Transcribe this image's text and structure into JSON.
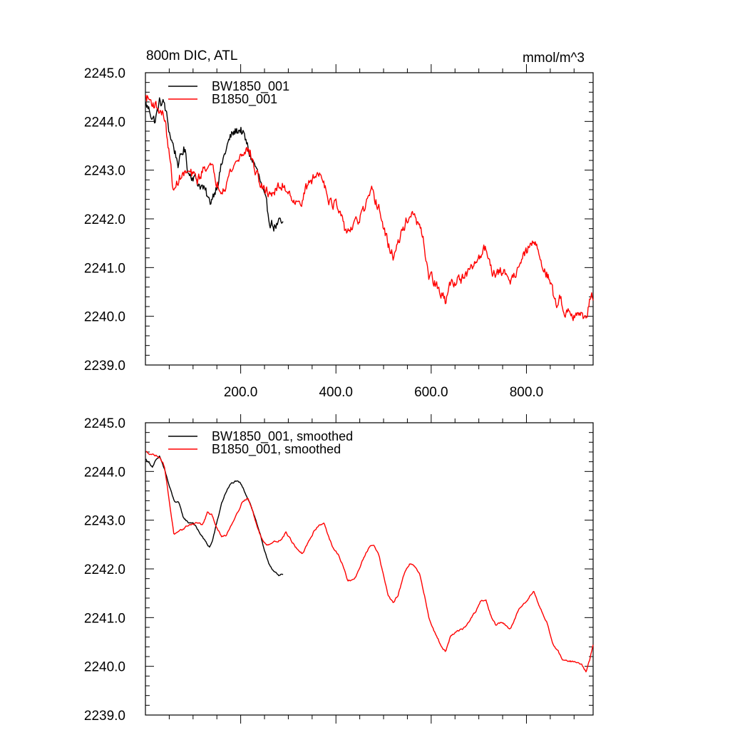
{
  "chart_data": [
    {
      "type": "line",
      "title": "800m DIC, ATL",
      "units": "mmol/m^3",
      "xlim": [
        0,
        940
      ],
      "ylim": [
        2239.0,
        2245.0
      ],
      "xticks": [
        200,
        400,
        600,
        800
      ],
      "xtick_labels": [
        "200.0",
        "400.0",
        "600.0",
        "800.0"
      ],
      "yticks": [
        2239.0,
        2240.0,
        2241.0,
        2242.0,
        2243.0,
        2244.0,
        2245.0
      ],
      "ytick_labels": [
        "2239.0",
        "2240.0",
        "2241.0",
        "2242.0",
        "2243.0",
        "2244.0",
        "2245.0"
      ],
      "legend_position": "top-left",
      "series": [
        {
          "name": "BW1850_001",
          "color": "#000000",
          "noise": 0.12,
          "points": [
            [
              1,
              2244.35
            ],
            [
              10,
              2244.2
            ],
            [
              20,
              2244.0
            ],
            [
              30,
              2244.4
            ],
            [
              40,
              2244.35
            ],
            [
              50,
              2243.8
            ],
            [
              60,
              2243.45
            ],
            [
              70,
              2243.1
            ],
            [
              80,
              2243.45
            ],
            [
              85,
              2243.3
            ],
            [
              90,
              2242.95
            ],
            [
              100,
              2242.9
            ],
            [
              110,
              2242.75
            ],
            [
              120,
              2242.65
            ],
            [
              130,
              2242.45
            ],
            [
              135,
              2242.3
            ],
            [
              140,
              2242.45
            ],
            [
              150,
              2242.7
            ],
            [
              160,
              2243.1
            ],
            [
              170,
              2243.45
            ],
            [
              180,
              2243.7
            ],
            [
              190,
              2243.8
            ],
            [
              200,
              2243.85
            ],
            [
              210,
              2243.6
            ],
            [
              220,
              2243.3
            ],
            [
              230,
              2243.1
            ],
            [
              240,
              2242.8
            ],
            [
              250,
              2242.4
            ],
            [
              260,
              2242.0
            ],
            [
              270,
              2241.85
            ],
            [
              280,
              2241.9
            ],
            [
              290,
              2241.85
            ]
          ]
        },
        {
          "name": "B1850_001",
          "color": "#ff0000",
          "noise": 0.12,
          "points": [
            [
              1,
              2244.5
            ],
            [
              20,
              2244.35
            ],
            [
              40,
              2244.1
            ],
            [
              50,
              2243.3
            ],
            [
              60,
              2242.5
            ],
            [
              70,
              2242.85
            ],
            [
              90,
              2242.95
            ],
            [
              110,
              2242.8
            ],
            [
              130,
              2243.15
            ],
            [
              140,
              2243.0
            ],
            [
              150,
              2242.75
            ],
            [
              160,
              2242.65
            ],
            [
              170,
              2242.75
            ],
            [
              180,
              2243.0
            ],
            [
              200,
              2243.3
            ],
            [
              210,
              2243.45
            ],
            [
              220,
              2243.35
            ],
            [
              230,
              2243.0
            ],
            [
              240,
              2242.75
            ],
            [
              250,
              2242.55
            ],
            [
              270,
              2242.55
            ],
            [
              290,
              2242.7
            ],
            [
              310,
              2242.45
            ],
            [
              320,
              2242.25
            ],
            [
              330,
              2242.45
            ],
            [
              345,
              2242.75
            ],
            [
              360,
              2242.9
            ],
            [
              370,
              2242.95
            ],
            [
              380,
              2242.6
            ],
            [
              390,
              2242.3
            ],
            [
              400,
              2242.3
            ],
            [
              410,
              2242.0
            ],
            [
              420,
              2241.75
            ],
            [
              440,
              2241.85
            ],
            [
              460,
              2242.2
            ],
            [
              475,
              2242.5
            ],
            [
              490,
              2242.25
            ],
            [
              500,
              2241.8
            ],
            [
              510,
              2241.45
            ],
            [
              520,
              2241.25
            ],
            [
              530,
              2241.45
            ],
            [
              545,
              2241.9
            ],
            [
              555,
              2242.1
            ],
            [
              565,
              2242.0
            ],
            [
              575,
              2241.85
            ],
            [
              585,
              2241.45
            ],
            [
              595,
              2240.85
            ],
            [
              610,
              2240.65
            ],
            [
              620,
              2240.45
            ],
            [
              630,
              2240.3
            ],
            [
              640,
              2240.65
            ],
            [
              660,
              2240.8
            ],
            [
              670,
              2240.75
            ],
            [
              680,
              2240.9
            ],
            [
              690,
              2241.05
            ],
            [
              700,
              2241.2
            ],
            [
              710,
              2241.4
            ],
            [
              720,
              2241.3
            ],
            [
              730,
              2240.9
            ],
            [
              740,
              2240.85
            ],
            [
              750,
              2240.95
            ],
            [
              760,
              2240.8
            ],
            [
              770,
              2240.75
            ],
            [
              780,
              2241.0
            ],
            [
              790,
              2241.15
            ],
            [
              800,
              2241.3
            ],
            [
              815,
              2241.55
            ],
            [
              825,
              2241.3
            ],
            [
              840,
              2240.95
            ],
            [
              850,
              2240.7
            ],
            [
              860,
              2240.25
            ],
            [
              870,
              2240.35
            ],
            [
              880,
              2240.15
            ],
            [
              890,
              2240.1
            ],
            [
              900,
              2240.05
            ],
            [
              910,
              2240.1
            ],
            [
              920,
              2239.9
            ],
            [
              930,
              2240.2
            ],
            [
              935,
              2240.45
            ],
            [
              940,
              2240.45
            ]
          ]
        }
      ]
    },
    {
      "type": "line",
      "xlim": [
        0,
        940
      ],
      "ylim": [
        2239.0,
        2245.0
      ],
      "xticks": [
        200,
        400,
        600,
        800
      ],
      "yticks": [
        2239.0,
        2240.0,
        2241.0,
        2242.0,
        2243.0,
        2244.0,
        2245.0
      ],
      "ytick_labels": [
        "2239.0",
        "2240.0",
        "2241.0",
        "2242.0",
        "2243.0",
        "2244.0",
        "2245.0"
      ],
      "legend_position": "top-left",
      "series": [
        {
          "name": "BW1850_001, smoothed",
          "color": "#000000",
          "noise": 0.02,
          "points": [
            [
              1,
              2244.25
            ],
            [
              10,
              2244.15
            ],
            [
              15,
              2244.1
            ],
            [
              20,
              2244.2
            ],
            [
              30,
              2244.3
            ],
            [
              40,
              2244.05
            ],
            [
              50,
              2243.7
            ],
            [
              60,
              2243.4
            ],
            [
              70,
              2243.35
            ],
            [
              80,
              2243.05
            ],
            [
              90,
              2242.95
            ],
            [
              100,
              2242.95
            ],
            [
              110,
              2242.8
            ],
            [
              120,
              2242.65
            ],
            [
              130,
              2242.5
            ],
            [
              135,
              2242.45
            ],
            [
              140,
              2242.55
            ],
            [
              150,
              2242.95
            ],
            [
              160,
              2243.35
            ],
            [
              170,
              2243.6
            ],
            [
              180,
              2243.75
            ],
            [
              190,
              2243.8
            ],
            [
              200,
              2243.75
            ],
            [
              210,
              2243.55
            ],
            [
              220,
              2243.35
            ],
            [
              230,
              2243.05
            ],
            [
              240,
              2242.75
            ],
            [
              250,
              2242.35
            ],
            [
              260,
              2242.1
            ],
            [
              270,
              2241.95
            ],
            [
              280,
              2241.85
            ],
            [
              290,
              2241.9
            ]
          ]
        },
        {
          "name": "B1850_001, smoothed",
          "color": "#ff0000",
          "noise": 0.02,
          "points": [
            [
              1,
              2244.4
            ],
            [
              15,
              2244.35
            ],
            [
              30,
              2244.3
            ],
            [
              40,
              2244.1
            ],
            [
              50,
              2243.4
            ],
            [
              60,
              2242.7
            ],
            [
              70,
              2242.75
            ],
            [
              90,
              2242.9
            ],
            [
              110,
              2242.95
            ],
            [
              120,
              2242.9
            ],
            [
              130,
              2243.15
            ],
            [
              140,
              2243.1
            ],
            [
              150,
              2242.85
            ],
            [
              160,
              2242.65
            ],
            [
              170,
              2242.7
            ],
            [
              180,
              2242.9
            ],
            [
              195,
              2243.2
            ],
            [
              205,
              2243.4
            ],
            [
              215,
              2243.45
            ],
            [
              225,
              2243.2
            ],
            [
              235,
              2242.85
            ],
            [
              245,
              2242.6
            ],
            [
              255,
              2242.5
            ],
            [
              270,
              2242.55
            ],
            [
              285,
              2242.6
            ],
            [
              295,
              2242.75
            ],
            [
              305,
              2242.6
            ],
            [
              315,
              2242.45
            ],
            [
              330,
              2242.3
            ],
            [
              345,
              2242.6
            ],
            [
              355,
              2242.8
            ],
            [
              365,
              2242.9
            ],
            [
              375,
              2242.95
            ],
            [
              385,
              2242.65
            ],
            [
              395,
              2242.4
            ],
            [
              405,
              2242.3
            ],
            [
              415,
              2242.05
            ],
            [
              425,
              2241.75
            ],
            [
              440,
              2241.8
            ],
            [
              455,
              2242.15
            ],
            [
              470,
              2242.45
            ],
            [
              480,
              2242.5
            ],
            [
              490,
              2242.3
            ],
            [
              500,
              2241.85
            ],
            [
              510,
              2241.45
            ],
            [
              520,
              2241.3
            ],
            [
              530,
              2241.45
            ],
            [
              545,
              2241.95
            ],
            [
              555,
              2242.1
            ],
            [
              565,
              2242.05
            ],
            [
              575,
              2241.9
            ],
            [
              585,
              2241.5
            ],
            [
              595,
              2241.0
            ],
            [
              605,
              2240.75
            ],
            [
              620,
              2240.45
            ],
            [
              630,
              2240.3
            ],
            [
              640,
              2240.6
            ],
            [
              655,
              2240.75
            ],
            [
              665,
              2240.75
            ],
            [
              675,
              2240.85
            ],
            [
              685,
              2241.0
            ],
            [
              695,
              2241.15
            ],
            [
              705,
              2241.35
            ],
            [
              715,
              2241.35
            ],
            [
              725,
              2241.05
            ],
            [
              735,
              2240.85
            ],
            [
              745,
              2240.9
            ],
            [
              755,
              2240.85
            ],
            [
              765,
              2240.75
            ],
            [
              775,
              2240.95
            ],
            [
              785,
              2241.2
            ],
            [
              795,
              2241.3
            ],
            [
              805,
              2241.4
            ],
            [
              815,
              2241.55
            ],
            [
              825,
              2241.3
            ],
            [
              835,
              2241.05
            ],
            [
              845,
              2240.85
            ],
            [
              855,
              2240.45
            ],
            [
              865,
              2240.35
            ],
            [
              875,
              2240.15
            ],
            [
              890,
              2240.1
            ],
            [
              905,
              2240.1
            ],
            [
              915,
              2240.05
            ],
            [
              925,
              2239.9
            ],
            [
              932,
              2240.1
            ],
            [
              940,
              2240.45
            ]
          ]
        }
      ]
    }
  ]
}
